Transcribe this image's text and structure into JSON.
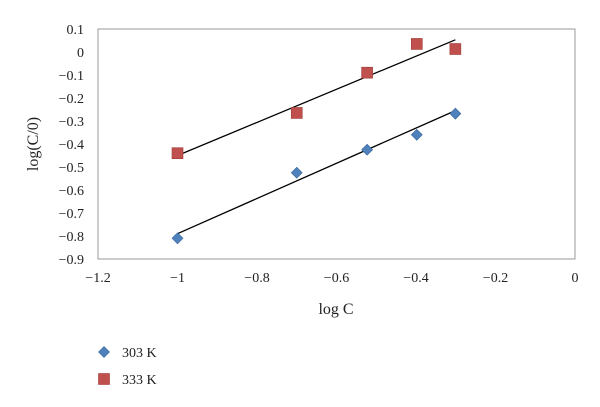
{
  "chart_data": {
    "type": "scatter",
    "xlabel": "log C",
    "ylabel": "log(C/0)",
    "xlim": [
      -1.2,
      0
    ],
    "ylim": [
      -0.9,
      0.1
    ],
    "xticks": [
      "−1.2",
      "−1",
      "−0.8",
      "−0.6",
      "−0.4",
      "−0.2",
      "0"
    ],
    "yticks": [
      "0.1",
      "0",
      "−0.1",
      "−0.2",
      "−0.3",
      "−0.4",
      "−0.5",
      "−0.6",
      "−0.7",
      "−0.8",
      "−0.9"
    ],
    "grid": false,
    "legend_position": "bottom-left",
    "series": [
      {
        "name": "303 K",
        "marker": "diamond",
        "color": "#4f81bd",
        "points": [
          [
            -1.0,
            -0.81
          ],
          [
            -0.7,
            -0.525
          ],
          [
            -0.523,
            -0.425
          ],
          [
            -0.398,
            -0.36
          ],
          [
            -0.301,
            -0.268
          ]
        ],
        "trendline": [
          [
            -1.0,
            -0.79
          ],
          [
            -0.301,
            -0.255
          ]
        ]
      },
      {
        "name": "333 K",
        "marker": "square",
        "color": "#c0504d",
        "points": [
          [
            -1.0,
            -0.44
          ],
          [
            -0.7,
            -0.265
          ],
          [
            -0.523,
            -0.09
          ],
          [
            -0.398,
            0.035
          ],
          [
            -0.301,
            0.013
          ]
        ],
        "trendline": [
          [
            -1.0,
            -0.45
          ],
          [
            -0.301,
            0.053
          ]
        ]
      }
    ]
  }
}
